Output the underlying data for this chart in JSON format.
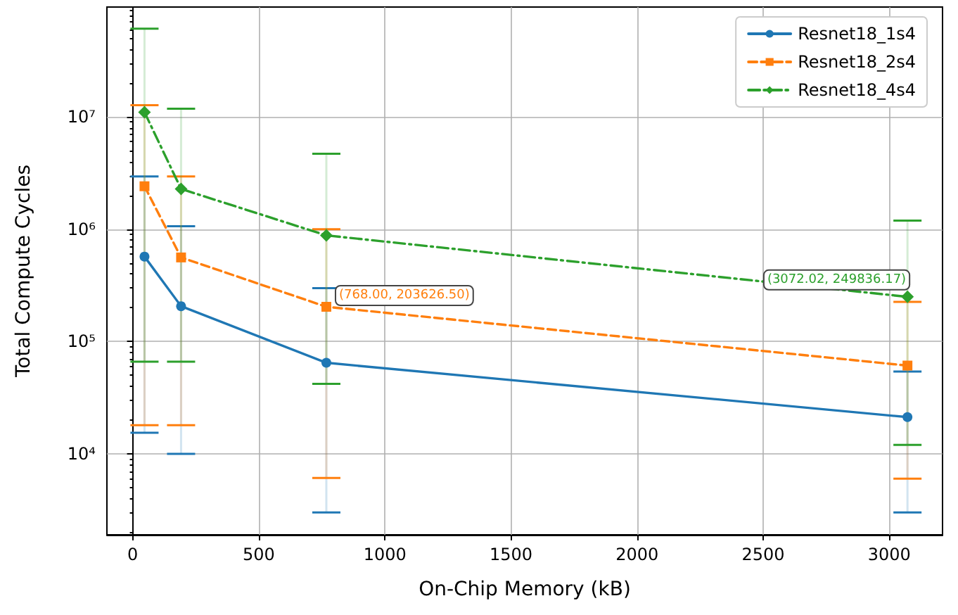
{
  "chart_data": {
    "type": "line",
    "xlabel": "On-Chip Memory (kB)",
    "ylabel": "Total Compute Cycles",
    "x": [
      47,
      192,
      768,
      3072
    ],
    "series": [
      {
        "name": "Resnet18_1s4",
        "color": "#1f77b4",
        "marker": "circle",
        "line_style": "solid",
        "values": [
          570000,
          206000,
          64600,
          21200
        ],
        "errors": [
          [
            15400,
            2950000
          ],
          [
            10000,
            1060000
          ],
          [
            3000,
            298000
          ],
          [
            3000,
            54000
          ]
        ]
      },
      {
        "name": "Resnet18_2s4",
        "color": "#ff7f0e",
        "marker": "square",
        "line_style": "dashed",
        "values": [
          2410000,
          560000,
          203626.5,
          61000
        ],
        "errors": [
          [
            18000,
            12700000
          ],
          [
            18000,
            2950000
          ],
          [
            6100,
            1000000
          ],
          [
            6000,
            225000
          ]
        ]
      },
      {
        "name": "Resnet18_4s4",
        "color": "#2ca02c",
        "marker": "diamond",
        "line_style": "dashdot",
        "x": [
          47,
          192,
          768,
          3072.02
        ],
        "values": [
          11000000,
          2280000,
          880000,
          249836.17
        ],
        "errors": [
          [
            66000,
            61000000
          ],
          [
            66000,
            11800000
          ],
          [
            42000,
            4700000
          ],
          [
            12000,
            1190000
          ]
        ]
      }
    ],
    "annotations": [
      {
        "text": "(768.00, 203626.50)",
        "x": 768,
        "y": 203626.5
      },
      {
        "text": "(3072.02, 249836.17)",
        "x": 3072.02,
        "y": 249836.17
      }
    ],
    "log": "y",
    "grid": true,
    "legend": "top right",
    "xlim": [
      -102,
      3211
    ],
    "xticks": [
      0,
      500,
      1000,
      1500,
      2000,
      2500,
      3000
    ],
    "ylim": [
      1900,
      95000000
    ],
    "yticks": [
      {
        "value": 10000,
        "label": "10⁴"
      },
      {
        "value": 100000,
        "label": "10⁵"
      },
      {
        "value": 1000000,
        "label": "10⁶"
      },
      {
        "value": 10000000,
        "label": "10⁷"
      }
    ]
  }
}
